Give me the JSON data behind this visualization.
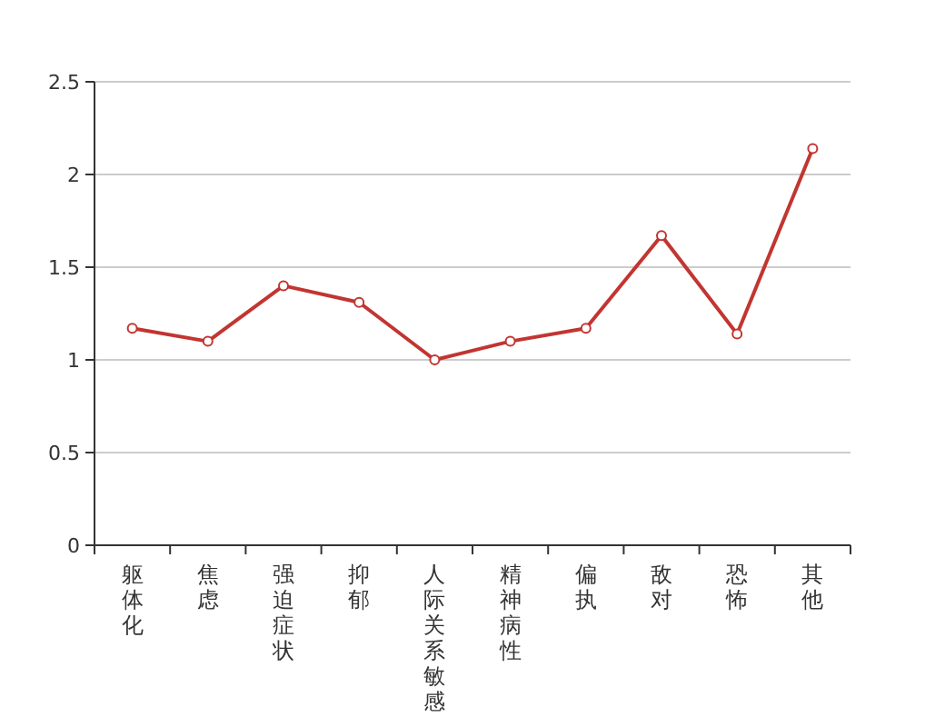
{
  "chart_data": {
    "type": "line",
    "categories": [
      "躯体化",
      "焦虑",
      "强迫症状",
      "抑郁",
      "人际关系敏感",
      "精神病性",
      "偏执",
      "敌对",
      "恐怖",
      "其他"
    ],
    "series": [
      {
        "color": "#c23531",
        "values": [
          1.17,
          1.1,
          1.4,
          1.31,
          1.0,
          1.1,
          1.17,
          1.67,
          1.14,
          2.14
        ]
      }
    ],
    "ylim": [
      0,
      2.5
    ],
    "yticks": [
      0,
      0.5,
      1,
      1.5,
      2,
      2.5
    ],
    "grid": "y",
    "marker": "circle",
    "line_style": "solid"
  }
}
